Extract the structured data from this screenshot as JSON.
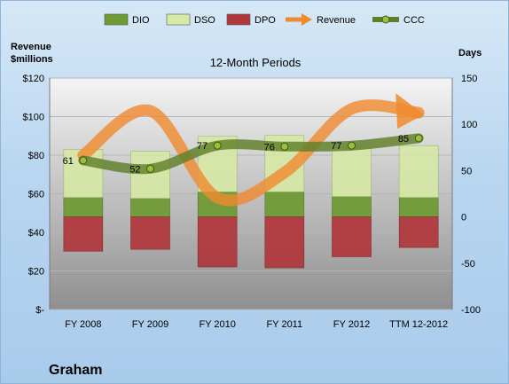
{
  "company": "Graham",
  "left_axis_title_line1": "Revenue",
  "left_axis_title_line2": "$millions",
  "right_axis_title": "Days",
  "colors": {
    "dio": "#6e9a32",
    "dso": "#d7e9a6",
    "dpo": "#b0373b",
    "revenue": "#f08a2e",
    "ccc": "#5f7f2a"
  },
  "chart_data": {
    "type": "bar",
    "title": "12-Month Periods",
    "categories": [
      "FY 2008",
      "FY 2009",
      "FY 2010",
      "FY 2011",
      "FY 2012",
      "TTM 12-2012"
    ],
    "left_axis": {
      "label": "Revenue $millions",
      "min": 0,
      "max": 120,
      "ticks": [
        "$-",
        "$20",
        "$40",
        "$60",
        "$80",
        "$100",
        "$120"
      ]
    },
    "right_axis": {
      "label": "Days",
      "min": -100,
      "max": 150,
      "ticks": [
        "-100",
        "-50",
        "0",
        "50",
        "100",
        "150"
      ]
    },
    "legend": [
      "DIO",
      "DSO",
      "DPO",
      "Revenue",
      "CCC"
    ],
    "series": [
      {
        "name": "DIO",
        "axis": "right",
        "values": [
          21,
          20,
          27,
          27,
          22,
          21
        ]
      },
      {
        "name": "DSO",
        "axis": "right",
        "values": [
          52,
          51,
          60,
          61,
          53,
          56
        ]
      },
      {
        "name": "DPO",
        "axis": "right",
        "values": [
          -37,
          -35,
          -54,
          -55,
          -43,
          -33
        ]
      },
      {
        "name": "Revenue",
        "axis": "left",
        "values": [
          80,
          103,
          58,
          71,
          104,
          102
        ]
      },
      {
        "name": "CCC",
        "axis": "right",
        "values": [
          61,
          52,
          77,
          76,
          77,
          85
        ]
      }
    ],
    "ccc_labels": [
      "61",
      "52",
      "77",
      "76",
      "77",
      "85"
    ]
  }
}
